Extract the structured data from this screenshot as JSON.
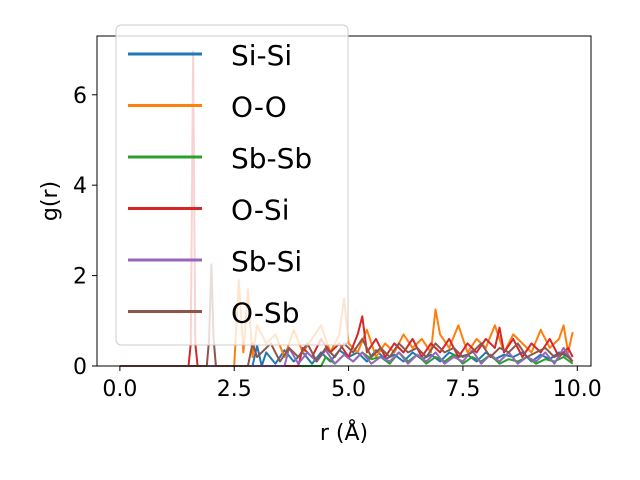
{
  "chart_data": {
    "type": "line",
    "xlabel": "r (Å)",
    "ylabel": "g(r)",
    "xlim": [
      -0.5,
      10.3
    ],
    "ylim": [
      0,
      7.3
    ],
    "xticks": [
      0.0,
      2.5,
      5.0,
      7.5,
      10.0
    ],
    "xtick_labels": [
      "0.0",
      "2.5",
      "5.0",
      "7.5",
      "10.0"
    ],
    "yticks": [
      0,
      2,
      4,
      6
    ],
    "ytick_labels": [
      "0",
      "2",
      "4",
      "6"
    ],
    "grid": false,
    "legend_position": "top-left",
    "series": [
      {
        "name": "Si-Si",
        "color": "#1f77b4",
        "x": [
          0,
          2.9,
          3.0,
          3.1,
          3.2,
          3.4,
          3.6,
          3.8,
          4.0,
          4.2,
          4.4,
          4.6,
          4.8,
          5.0,
          5.2,
          5.4,
          5.6,
          5.8,
          6.0,
          6.2,
          6.4,
          6.6,
          6.8,
          7.0,
          7.2,
          7.4,
          7.6,
          7.8,
          8.0,
          8.2,
          8.4,
          8.6,
          8.8,
          9.0,
          9.2,
          9.4,
          9.6,
          9.8
        ],
        "y": [
          0,
          0,
          0.45,
          0,
          0.3,
          0.05,
          0.35,
          0.1,
          0.3,
          0.05,
          0.3,
          0.1,
          0.35,
          0.2,
          0.3,
          0.1,
          0.35,
          0.15,
          0.25,
          0.1,
          0.3,
          0.15,
          0.25,
          0.1,
          0.3,
          0.2,
          0.25,
          0.1,
          0.3,
          0.15,
          0.25,
          0.2,
          0.3,
          0.1,
          0.25,
          0.15,
          0.3,
          0.2
        ]
      },
      {
        "name": "O-O",
        "color": "#ff7f0e",
        "x": [
          0,
          2.5,
          2.6,
          2.7,
          2.8,
          2.9,
          3.0,
          3.2,
          3.4,
          3.6,
          3.8,
          4.0,
          4.2,
          4.4,
          4.6,
          4.8,
          4.9,
          5.0,
          5.2,
          5.4,
          5.6,
          5.8,
          6.0,
          6.2,
          6.4,
          6.6,
          6.8,
          6.9,
          7.0,
          7.2,
          7.4,
          7.6,
          7.8,
          8.0,
          8.2,
          8.4,
          8.6,
          8.8,
          9.0,
          9.2,
          9.4,
          9.6,
          9.7,
          9.8,
          9.9
        ],
        "y": [
          0,
          0,
          1.9,
          0.3,
          1.7,
          0.2,
          0.9,
          0.5,
          0.7,
          0.2,
          0.8,
          0.3,
          0.6,
          0.9,
          0.3,
          0.7,
          1.5,
          0.5,
          0.3,
          0.8,
          0.2,
          0.5,
          0.3,
          0.7,
          0.4,
          0.6,
          0.3,
          1.25,
          0.7,
          0.4,
          0.9,
          0.3,
          0.6,
          0.4,
          0.9,
          0.3,
          0.7,
          0.5,
          0.3,
          0.8,
          0.4,
          0.6,
          0.9,
          0.3,
          0.75
        ]
      },
      {
        "name": "Sb-Sb",
        "color": "#2ca02c",
        "x": [
          0,
          4.4,
          4.5,
          4.7,
          4.9,
          5.1,
          5.3,
          5.5,
          5.7,
          5.9,
          6.1,
          6.3,
          6.5,
          6.7,
          6.9,
          7.1,
          7.3,
          7.5,
          7.7,
          7.9,
          8.1,
          8.3,
          8.5,
          8.7,
          8.9,
          9.1,
          9.3,
          9.5,
          9.7,
          9.9
        ],
        "y": [
          0,
          0,
          0.2,
          0.05,
          0.25,
          0.1,
          0.3,
          0.15,
          0.2,
          0.05,
          0.3,
          0.1,
          0.25,
          0.05,
          0.2,
          0.1,
          0.25,
          0.05,
          0.2,
          0.1,
          0.25,
          0.05,
          0.15,
          0.1,
          0.2,
          0.05,
          0.15,
          0.1,
          0.2,
          0.05
        ]
      },
      {
        "name": "O-Si",
        "color": "#d62728",
        "x": [
          0,
          1.5,
          1.55,
          1.6,
          1.65,
          1.7,
          3.9,
          4.0,
          4.2,
          4.4,
          4.6,
          4.8,
          5.0,
          5.2,
          5.3,
          5.4,
          5.6,
          5.8,
          6.0,
          6.2,
          6.4,
          6.6,
          6.8,
          7.0,
          7.2,
          7.4,
          7.6,
          7.8,
          8.0,
          8.2,
          8.3,
          8.4,
          8.6,
          8.8,
          9.0,
          9.2,
          9.4,
          9.6,
          9.8,
          9.9
        ],
        "y": [
          0,
          0,
          0.5,
          6.95,
          0.5,
          0,
          0,
          0.4,
          0.2,
          0.6,
          0.3,
          0.5,
          0.2,
          0.7,
          1.1,
          0.3,
          0.6,
          0.2,
          0.5,
          0.3,
          0.6,
          0.2,
          0.5,
          0.3,
          0.6,
          0.2,
          0.5,
          0.3,
          0.6,
          0.4,
          0.85,
          0.3,
          0.6,
          0.2,
          0.5,
          0.3,
          0.6,
          0.2,
          0.4,
          0.2
        ]
      },
      {
        "name": "Sb-Si",
        "color": "#9467bd",
        "x": [
          0,
          3.6,
          3.7,
          3.9,
          4.1,
          4.3,
          4.5,
          4.7,
          4.9,
          5.1,
          5.3,
          5.5,
          5.7,
          5.9,
          6.1,
          6.3,
          6.5,
          6.7,
          6.9,
          7.1,
          7.3,
          7.5,
          7.7,
          7.9,
          8.1,
          8.3,
          8.5,
          8.7,
          8.9,
          9.1,
          9.3,
          9.5,
          9.7,
          9.9
        ],
        "y": [
          0,
          0,
          0.4,
          0.05,
          0.3,
          0.1,
          0.35,
          0.05,
          0.25,
          0.1,
          0.3,
          0.05,
          0.2,
          0.1,
          0.3,
          0.05,
          0.25,
          0.1,
          0.3,
          0.05,
          0.2,
          0.1,
          0.35,
          0.05,
          0.25,
          0.1,
          0.3,
          0.05,
          0.2,
          0.1,
          0.3,
          0.05,
          0.4,
          0.1
        ]
      },
      {
        "name": "O-Sb",
        "color": "#8c564b",
        "x": [
          0,
          1.9,
          1.95,
          2.0,
          2.05,
          2.1,
          2.8,
          2.9,
          3.0,
          3.3,
          3.5,
          3.7,
          3.9,
          4.1,
          4.3,
          4.5,
          4.7,
          4.9,
          5.1,
          5.3,
          5.5,
          5.7,
          5.9,
          6.1,
          6.3,
          6.5,
          6.7,
          6.9,
          7.1,
          7.3,
          7.5,
          7.7,
          7.9,
          8.1,
          8.3,
          8.5,
          8.7,
          8.9,
          9.1,
          9.3,
          9.5,
          9.7,
          9.9
        ],
        "y": [
          0,
          0,
          0.6,
          2.25,
          0.6,
          0,
          0,
          0.5,
          0.2,
          0.5,
          0.1,
          0.4,
          0.2,
          0.5,
          0.1,
          0.4,
          0.2,
          0.5,
          0.3,
          0.6,
          0.2,
          0.4,
          0.2,
          0.5,
          0.3,
          0.4,
          0.2,
          0.5,
          0.3,
          0.4,
          0.2,
          0.3,
          0.5,
          0.2,
          0.4,
          0.3,
          0.5,
          0.2,
          0.3,
          0.4,
          0.2,
          0.3,
          0.1
        ]
      }
    ]
  }
}
